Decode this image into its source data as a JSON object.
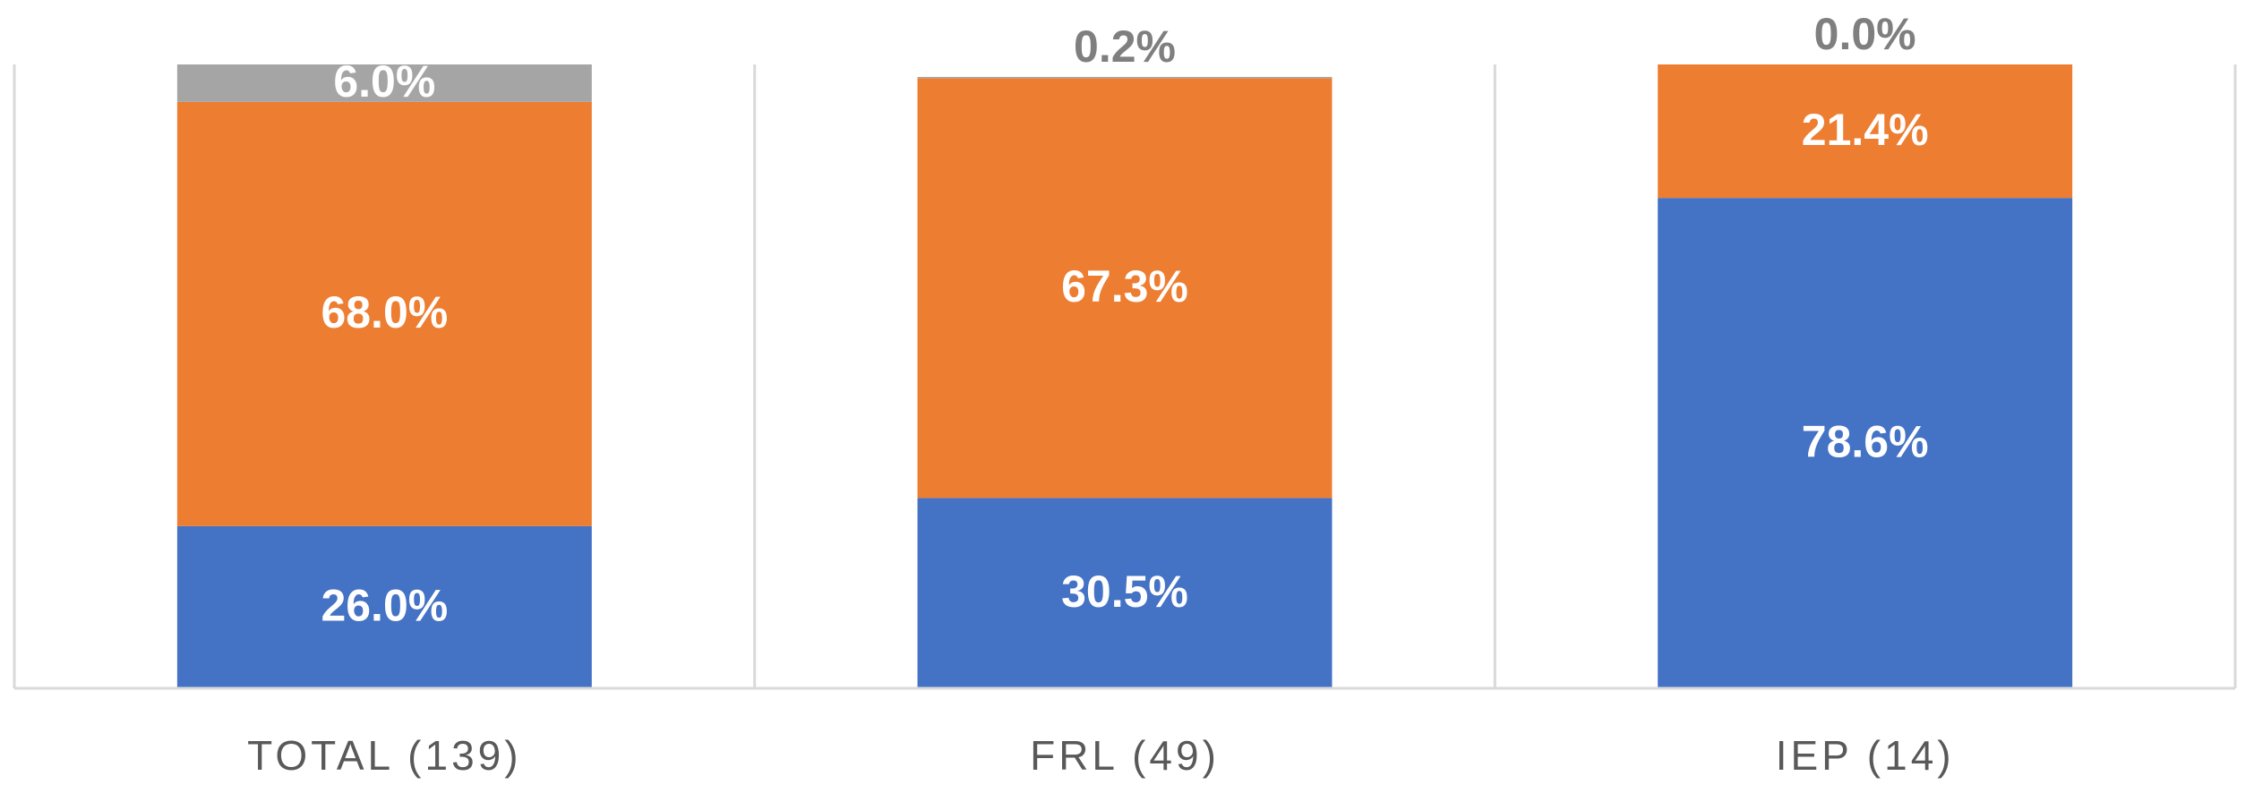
{
  "chart_data": {
    "type": "stacked_bar",
    "categories": [
      "TOTAL (139)",
      "FRL (49)",
      "IEP (14)"
    ],
    "series": [
      {
        "color": "#4472c4",
        "values": [
          26.0,
          30.5,
          78.6
        ],
        "value_labels": [
          "26.0%",
          "30.5%",
          "78.6%"
        ]
      },
      {
        "color": "#ed7d31",
        "values": [
          68.0,
          67.3,
          21.4
        ],
        "value_labels": [
          "68.0%",
          "67.3%",
          "21.4%"
        ]
      },
      {
        "color": "#a5a5a5",
        "values": [
          6.0,
          0.2,
          0.0
        ],
        "value_labels": [
          "6.0%",
          "0.2%",
          "0.0%"
        ]
      }
    ],
    "ylim": [
      0,
      100
    ]
  }
}
